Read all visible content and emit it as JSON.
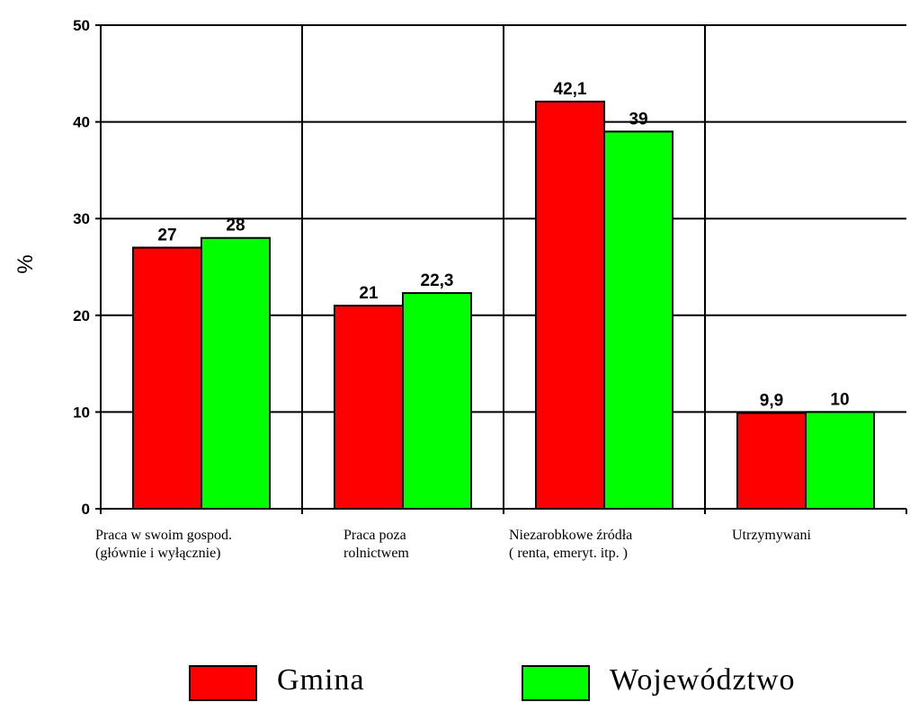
{
  "chart_data": {
    "type": "bar",
    "categories": [
      "Praca w swoim gospod.\n(głównie i wyłącznie)",
      "Praca poza\nrolnictwem",
      "Niezarobkowe źródła\n( renta, emeryt. itp. )",
      "Utrzymywani"
    ],
    "series": [
      {
        "name": "Gmina",
        "values": [
          27,
          21,
          42.1,
          9.9
        ],
        "labels": [
          "27",
          "21",
          "42,1",
          "9,9"
        ],
        "color": "#ff0000"
      },
      {
        "name": "Województwo",
        "values": [
          28,
          22.3,
          39,
          10
        ],
        "labels": [
          "28",
          "22,3",
          "39",
          "10"
        ],
        "color": "#00ff00"
      }
    ],
    "ylabel": "%",
    "xlabel": "",
    "title": "",
    "ylim": [
      0,
      50
    ],
    "yticks": [
      0,
      10,
      20,
      30,
      40,
      50
    ],
    "grid": true,
    "legend": "bottom"
  }
}
